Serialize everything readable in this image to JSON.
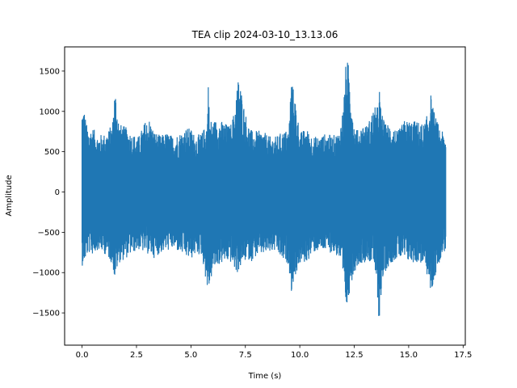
{
  "chart_data": {
    "type": "line",
    "title": "TEA clip 2024-03-10_13.13.06",
    "xlabel": "Time (s)",
    "ylabel": "Amplitude",
    "xlim": [
      -0.8,
      17.6
    ],
    "ylim": [
      -1900,
      1800
    ],
    "x_ticks": [
      0.0,
      2.5,
      5.0,
      7.5,
      10.0,
      12.5,
      15.0,
      17.5
    ],
    "x_tick_labels": [
      "0.0",
      "2.5",
      "5.0",
      "7.5",
      "10.0",
      "12.5",
      "15.0",
      "17.5"
    ],
    "y_ticks": [
      -1500,
      -1000,
      -500,
      0,
      500,
      1000,
      1500
    ],
    "y_tick_labels": [
      "−1500",
      "−1000",
      "−500",
      "0",
      "500",
      "1000",
      "1500"
    ],
    "grid": false,
    "series_color": "#1f77b4",
    "envelope": {
      "x": [
        0.0,
        0.1,
        0.2,
        0.3,
        0.5,
        0.7,
        1.0,
        1.2,
        1.4,
        1.5,
        1.55,
        1.7,
        2.0,
        2.3,
        2.6,
        2.9,
        3.1,
        3.3,
        3.6,
        3.9,
        4.2,
        4.5,
        4.8,
        5.0,
        5.2,
        5.5,
        5.75,
        5.8,
        5.85,
        6.0,
        6.2,
        6.5,
        6.8,
        7.0,
        7.1,
        7.2,
        7.4,
        7.6,
        7.8,
        8.0,
        8.3,
        8.6,
        8.9,
        9.2,
        9.5,
        9.6,
        9.8,
        10.0,
        10.3,
        10.6,
        10.9,
        11.2,
        11.5,
        11.8,
        12.0,
        12.1,
        12.2,
        12.3,
        12.5,
        12.7,
        12.9,
        13.1,
        13.4,
        13.6,
        13.65,
        13.7,
        13.9,
        14.2,
        14.5,
        14.8,
        15.1,
        15.4,
        15.7,
        15.9,
        16.0,
        16.1,
        16.3,
        16.5,
        16.7
      ],
      "max": [
        1060,
        1030,
        850,
        780,
        800,
        710,
        720,
        760,
        870,
        1280,
        1240,
        850,
        810,
        720,
        690,
        880,
        910,
        760,
        700,
        740,
        690,
        740,
        800,
        790,
        700,
        730,
        880,
        1440,
        920,
        880,
        910,
        870,
        820,
        1010,
        1290,
        1460,
        1120,
        870,
        760,
        760,
        760,
        690,
        690,
        750,
        780,
        1430,
        1150,
        740,
        790,
        690,
        690,
        730,
        700,
        740,
        1070,
        1560,
        1640,
        1460,
        820,
        760,
        850,
        830,
        1050,
        1070,
        1360,
        1080,
        850,
        850,
        750,
        890,
        890,
        880,
        840,
        1000,
        1250,
        1070,
        880,
        770,
        680
      ],
      "min": [
        -920,
        -880,
        -820,
        -760,
        -780,
        -720,
        -760,
        -820,
        -900,
        -1100,
        -1020,
        -880,
        -830,
        -760,
        -720,
        -760,
        -780,
        -820,
        -760,
        -730,
        -710,
        -760,
        -820,
        -840,
        -780,
        -790,
        -1200,
        -1300,
        -1180,
        -1000,
        -920,
        -880,
        -870,
        -960,
        -1020,
        -980,
        -880,
        -840,
        -860,
        -800,
        -780,
        -760,
        -740,
        -860,
        -900,
        -1260,
        -1040,
        -900,
        -880,
        -760,
        -730,
        -740,
        -760,
        -820,
        -1200,
        -1400,
        -1500,
        -1180,
        -1000,
        -900,
        -880,
        -860,
        -900,
        -1400,
        -1740,
        -1350,
        -1000,
        -880,
        -820,
        -860,
        -880,
        -880,
        -900,
        -1100,
        -1260,
        -1200,
        -960,
        -800,
        -720
      ]
    }
  }
}
